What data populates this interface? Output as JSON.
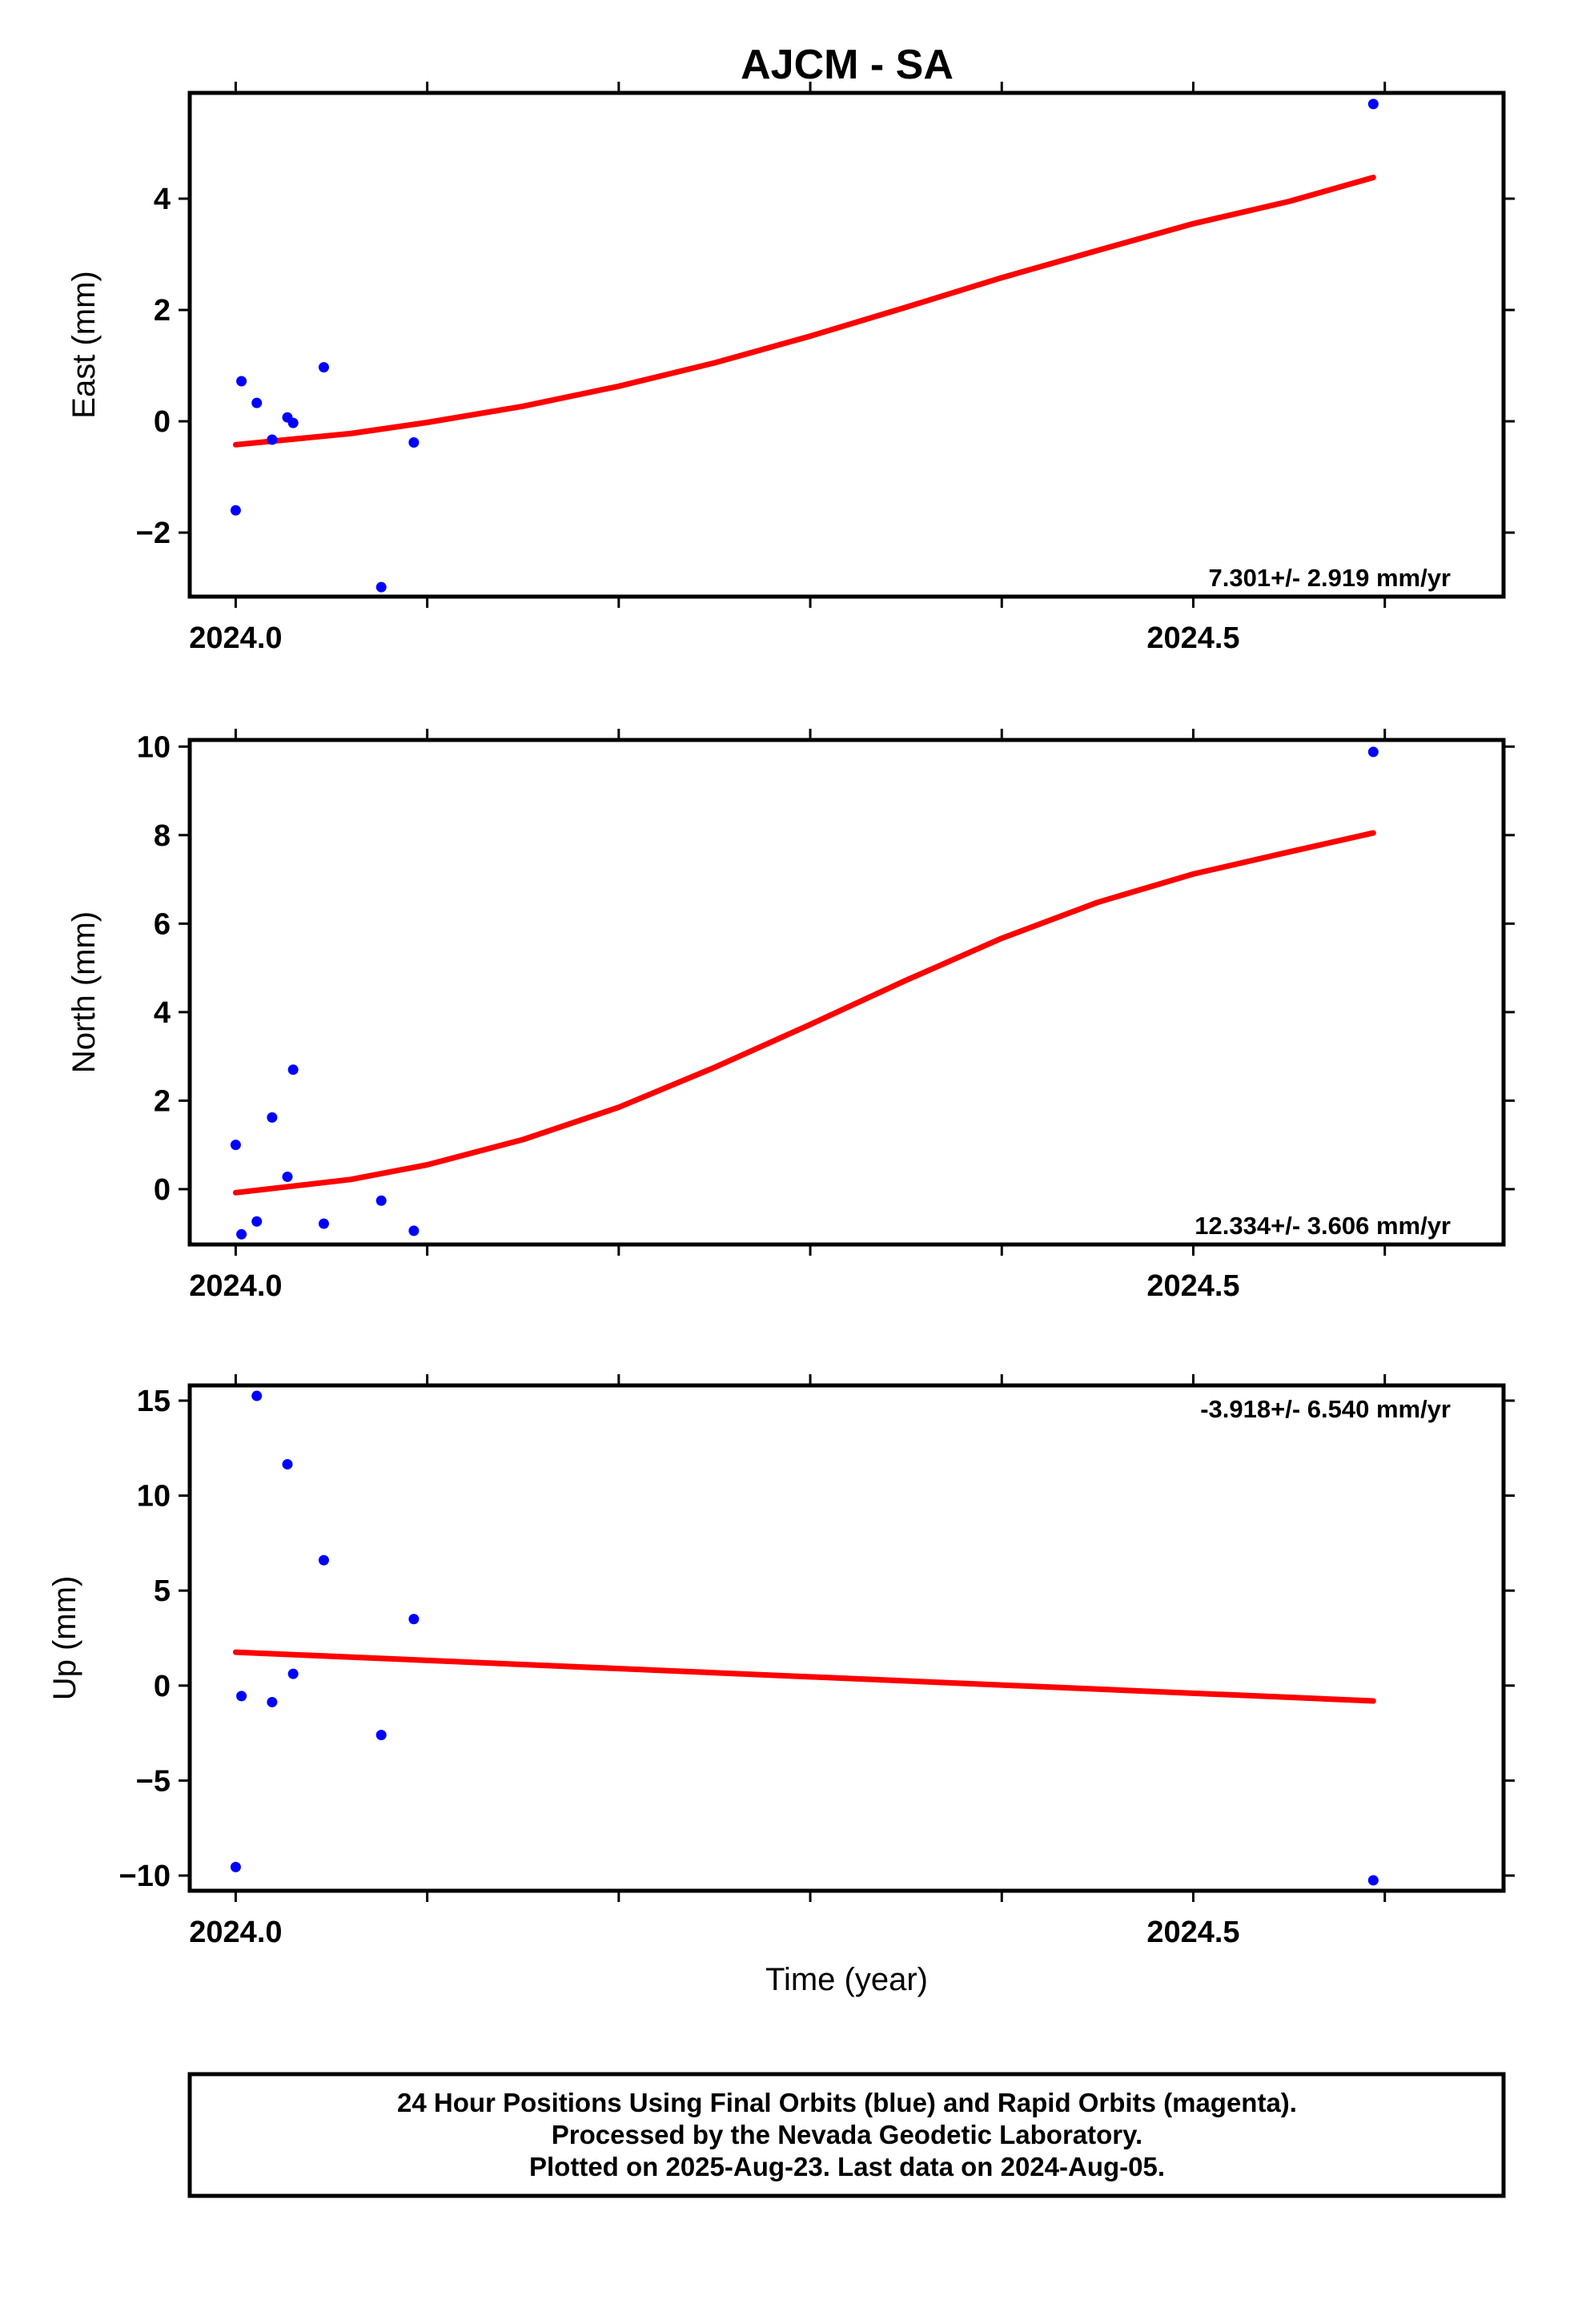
{
  "title": "AJCM - SA",
  "chart_data": [
    {
      "type": "scatter",
      "name": "east",
      "ylabel": "East (mm)",
      "xlabel": "",
      "xlim": [
        23.976,
        24.662
      ],
      "ylim": [
        -3.15,
        5.9
      ],
      "x_ticks": [
        {
          "v": 24.0,
          "label": "2024.0"
        },
        {
          "v": 24.5,
          "label": "2024.5"
        }
      ],
      "y_ticks": [
        -2,
        0,
        2,
        4
      ],
      "y_tick_labels": [
        "−2",
        "0",
        "2",
        "4"
      ],
      "rate_label": "7.301+/- 2.919 mm/yr",
      "points": [
        [
          24.0,
          -1.6
        ],
        [
          24.003,
          0.72
        ],
        [
          24.011,
          0.33
        ],
        [
          24.019,
          -0.33
        ],
        [
          24.027,
          0.07
        ],
        [
          24.03,
          -0.03
        ],
        [
          24.046,
          0.97
        ],
        [
          24.076,
          -2.98
        ],
        [
          24.093,
          -0.38
        ],
        [
          24.594,
          5.7
        ]
      ],
      "fit_line": [
        [
          24.0,
          -0.42
        ],
        [
          24.06,
          -0.22
        ],
        [
          24.1,
          -0.02
        ],
        [
          24.15,
          0.27
        ],
        [
          24.2,
          0.63
        ],
        [
          24.25,
          1.05
        ],
        [
          24.3,
          1.53
        ],
        [
          24.35,
          2.05
        ],
        [
          24.4,
          2.58
        ],
        [
          24.45,
          3.07
        ],
        [
          24.5,
          3.55
        ],
        [
          24.55,
          3.95
        ],
        [
          24.594,
          4.38
        ]
      ]
    },
    {
      "type": "scatter",
      "name": "north",
      "ylabel": "North (mm)",
      "xlabel": "",
      "xlim": [
        23.976,
        24.662
      ],
      "ylim": [
        -1.25,
        10.15
      ],
      "x_ticks": [
        {
          "v": 24.0,
          "label": "2024.0"
        },
        {
          "v": 24.5,
          "label": "2024.5"
        }
      ],
      "y_ticks": [
        0,
        2,
        4,
        6,
        8,
        10
      ],
      "y_tick_labels": [
        "0",
        "2",
        "4",
        "6",
        "8",
        "10"
      ],
      "rate_label": "12.334+/- 3.606 mm/yr",
      "points": [
        [
          24.0,
          1.0
        ],
        [
          24.003,
          -1.02
        ],
        [
          24.011,
          -0.73
        ],
        [
          24.019,
          1.62
        ],
        [
          24.027,
          0.28
        ],
        [
          24.03,
          2.7
        ],
        [
          24.046,
          -0.78
        ],
        [
          24.076,
          -0.26
        ],
        [
          24.093,
          -0.94
        ],
        [
          24.594,
          9.88
        ]
      ],
      "fit_line": [
        [
          24.0,
          -0.08
        ],
        [
          24.06,
          0.22
        ],
        [
          24.1,
          0.55
        ],
        [
          24.15,
          1.12
        ],
        [
          24.2,
          1.85
        ],
        [
          24.25,
          2.75
        ],
        [
          24.3,
          3.72
        ],
        [
          24.35,
          4.72
        ],
        [
          24.4,
          5.67
        ],
        [
          24.45,
          6.48
        ],
        [
          24.5,
          7.12
        ],
        [
          24.55,
          7.62
        ],
        [
          24.594,
          8.05
        ]
      ]
    },
    {
      "type": "scatter",
      "name": "up",
      "ylabel": "Up (mm)",
      "xlabel": "Time (year)",
      "xlim": [
        23.976,
        24.662
      ],
      "ylim": [
        -10.8,
        15.8
      ],
      "x_ticks": [
        {
          "v": 24.0,
          "label": "2024.0"
        },
        {
          "v": 24.5,
          "label": "2024.5"
        }
      ],
      "y_ticks": [
        -10,
        -5,
        0,
        5,
        10,
        15
      ],
      "y_tick_labels": [
        "−10",
        "−5",
        "0",
        "5",
        "10",
        "15"
      ],
      "rate_label": "-3.918+/- 6.540 mm/yr",
      "points": [
        [
          24.0,
          -9.55
        ],
        [
          24.003,
          -0.55
        ],
        [
          24.011,
          15.25
        ],
        [
          24.019,
          -0.87
        ],
        [
          24.027,
          11.65
        ],
        [
          24.03,
          0.62
        ],
        [
          24.046,
          6.6
        ],
        [
          24.076,
          -2.6
        ],
        [
          24.093,
          3.5
        ],
        [
          24.594,
          -10.25
        ]
      ],
      "fit_line": [
        [
          24.0,
          1.76
        ],
        [
          24.594,
          -0.81
        ]
      ]
    }
  ],
  "caption": [
    "24 Hour Positions Using Final Orbits (blue) and Rapid Orbits (magenta).",
    "Processed by the Nevada Geodetic Laboratory.",
    "Plotted on 2025-Aug-23. Last data on 2024-Aug-05."
  ],
  "colors": {
    "final_orbit_points": "#0000ff",
    "fit_line": "#ff0000",
    "frame": "#000000"
  }
}
